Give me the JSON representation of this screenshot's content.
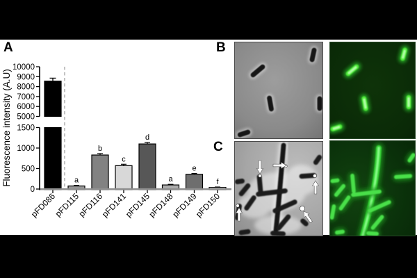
{
  "canvas": {
    "background": "#000000",
    "content_background": "#ffffff"
  },
  "panels": {
    "a_label": "A",
    "b_label": "B",
    "c_label": "C"
  },
  "chart_data": {
    "type": "bar",
    "title": "",
    "xlabel": "",
    "ylabel": "Fluorescence intensity (A.U)",
    "categories": [
      "pFD086",
      "pFD115",
      "pFD116",
      "pFD141",
      "pFD145",
      "pFD148",
      "pFD149",
      "pFD150"
    ],
    "values": [
      8550,
      75,
      830,
      570,
      1100,
      100,
      360,
      40
    ],
    "errors": [
      300,
      15,
      35,
      35,
      35,
      15,
      20,
      10
    ],
    "sig_labels": [
      "",
      "a",
      "b",
      "c",
      "d",
      "a",
      "e",
      "f"
    ],
    "bar_colors": [
      "#000000",
      "#969696",
      "#828282",
      "#d8d8d8",
      "#575757",
      "#adadad",
      "#6e6e6e",
      "#ffffff"
    ],
    "axis_break": {
      "lower_range": [
        0,
        1500
      ],
      "upper_range": [
        5000,
        10000
      ]
    },
    "lower_ticks": [
      0,
      500,
      1000,
      1500
    ],
    "upper_ticks": [
      5000,
      6000,
      7000,
      8000,
      9000,
      10000
    ],
    "grid": false,
    "legend": "none",
    "dashed_separator_after_category": "pFD086",
    "x_tick_label_rotation_deg": -45
  },
  "microscopy": {
    "b_left_type": "phase-contrast-micrograph",
    "b_right_type": "green-fluorescence-micrograph",
    "c_left_type": "phase-contrast-micrograph",
    "c_right_type": "green-fluorescence-micrograph",
    "c_left_arrow_count": 5,
    "fluorescence_green": "#39d23a"
  }
}
